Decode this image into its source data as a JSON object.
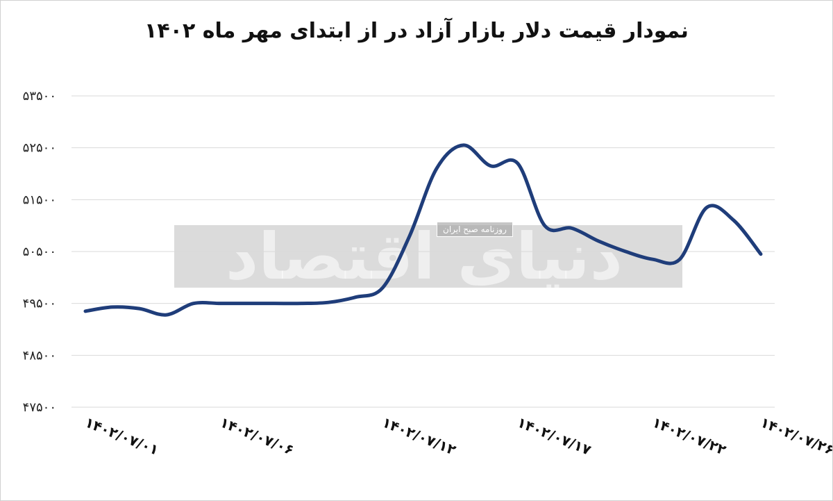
{
  "chart_data": {
    "type": "line",
    "title": "نمودار قیمت دلار بازار آزاد در از ابتدای مهر ماه ۱۴۰۲",
    "xlabel": "",
    "ylabel": "",
    "ylim": [
      47500,
      53500
    ],
    "y_ticks": [
      47500,
      48500,
      49500,
      50500,
      51500,
      52500,
      53500
    ],
    "y_tick_labels": [
      "۴۷۵۰۰",
      "۴۸۵۰۰",
      "۴۹۵۰۰",
      "۵۰۵۰۰",
      "۵۱۵۰۰",
      "۵۲۵۰۰",
      "۵۳۵۰۰"
    ],
    "x_tick_labels": [
      "۱۴۰۲/۰۷/۰۱",
      "۱۴۰۲/۰۷/۰۶",
      "۱۴۰۲/۰۷/۱۲",
      "۱۴۰۲/۰۷/۱۷",
      "۱۴۰۲/۰۷/۲۲",
      "۱۴۰۲/۰۷/۲۶"
    ],
    "x_tick_dates": [
      "1402/07/01",
      "1402/07/06",
      "1402/07/12",
      "1402/07/17",
      "1402/07/22",
      "1402/07/26"
    ],
    "grid": true,
    "legend": "none",
    "series": [
      {
        "color": "#1f3d7a",
        "points": [
          {
            "x": "1402/07/01",
            "y": 49350
          },
          {
            "x": "1402/07/02",
            "y": 49430
          },
          {
            "x": "1402/07/03",
            "y": 49400
          },
          {
            "x": "1402/07/04",
            "y": 49280
          },
          {
            "x": "1402/07/05",
            "y": 49500
          },
          {
            "x": "1402/07/06",
            "y": 49500
          },
          {
            "x": "1402/07/07",
            "y": 49500
          },
          {
            "x": "1402/07/08",
            "y": 49500
          },
          {
            "x": "1402/07/09",
            "y": 49500
          },
          {
            "x": "1402/07/10",
            "y": 49520
          },
          {
            "x": "1402/07/11",
            "y": 49620
          },
          {
            "x": "1402/07/12",
            "y": 49800
          },
          {
            "x": "1402/07/13",
            "y": 50800
          },
          {
            "x": "1402/07/14",
            "y": 52100
          },
          {
            "x": "1402/07/15",
            "y": 52550
          },
          {
            "x": "1402/07/16",
            "y": 52150
          },
          {
            "x": "1402/07/17",
            "y": 52200
          },
          {
            "x": "1402/07/18",
            "y": 51000
          },
          {
            "x": "1402/07/19",
            "y": 50950
          },
          {
            "x": "1402/07/20",
            "y": 50700
          },
          {
            "x": "1402/07/21",
            "y": 50500
          },
          {
            "x": "1402/07/22",
            "y": 50350
          },
          {
            "x": "1402/07/23",
            "y": 50350
          },
          {
            "x": "1402/07/24",
            "y": 51350
          },
          {
            "x": "1402/07/25",
            "y": 51100
          },
          {
            "x": "1402/07/26",
            "y": 50450
          }
        ]
      }
    ]
  },
  "watermark": {
    "brand": "دنیای اقتصاد",
    "tagline": "روزنامه صبح ایران"
  }
}
